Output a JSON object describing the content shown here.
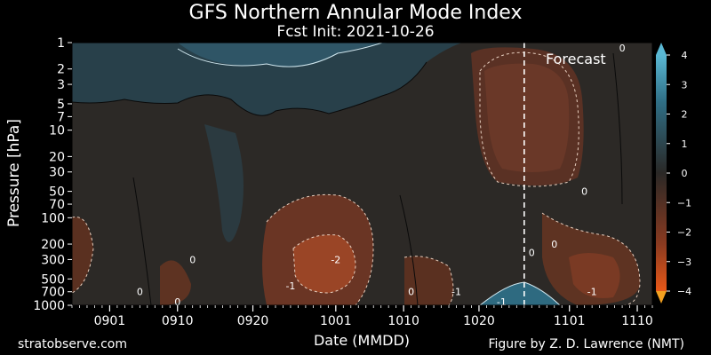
{
  "chart_data": {
    "type": "heatmap",
    "title": "GFS Northern Annular Mode Index",
    "subtitle": "Fcst Init: 2021-10-26",
    "xlabel": "Date (MMDD)",
    "ylabel": "Pressure [hPa]",
    "x_ticks": [
      "0901",
      "0910",
      "0920",
      "1001",
      "1010",
      "1020",
      "1101",
      "1110"
    ],
    "y_ticks": [
      "1",
      "2",
      "3",
      "5",
      "7",
      "10",
      "20",
      "30",
      "50",
      "70",
      "100",
      "200",
      "300",
      "500",
      "700",
      "1000"
    ],
    "y_scale": "log",
    "ylim": [
      1000,
      1
    ],
    "forecast_label": "Forecast",
    "forecast_start": "1026",
    "colorbar": {
      "ticks": [
        "4",
        "3",
        "2",
        "1",
        "0",
        "−1",
        "−2",
        "−3",
        "−4"
      ],
      "vmin": -4,
      "vmax": 4,
      "extend": "both"
    },
    "contour_labels": [
      {
        "text": "0",
        "date": "0905",
        "p": 700
      },
      {
        "text": "0",
        "date": "0910",
        "p": 1000
      },
      {
        "text": "0",
        "date": "0912",
        "p": 300
      },
      {
        "text": "-2",
        "date": "1001",
        "p": 300
      },
      {
        "text": "-1",
        "date": "0925",
        "p": 600
      },
      {
        "text": "0",
        "date": "1011",
        "p": 700
      },
      {
        "text": "-1",
        "date": "1017",
        "p": 700
      },
      {
        "text": "-1",
        "date": "1023",
        "p": 1000
      },
      {
        "text": "0",
        "date": "1027",
        "p": 250
      },
      {
        "text": "0",
        "date": "1030",
        "p": 200
      },
      {
        "text": "0",
        "date": "1103",
        "p": 50
      },
      {
        "text": "-1",
        "date": "1104",
        "p": 700
      },
      {
        "text": "0",
        "date": "1108",
        "p": 1
      }
    ]
  },
  "footer": {
    "left": "stratobserve.com",
    "right": "Figure by Z. D. Lawrence (NMT)"
  },
  "colors": {
    "positive": "#3a9ab5",
    "neutral": "#2a2826",
    "negative": "#e04a1a"
  }
}
